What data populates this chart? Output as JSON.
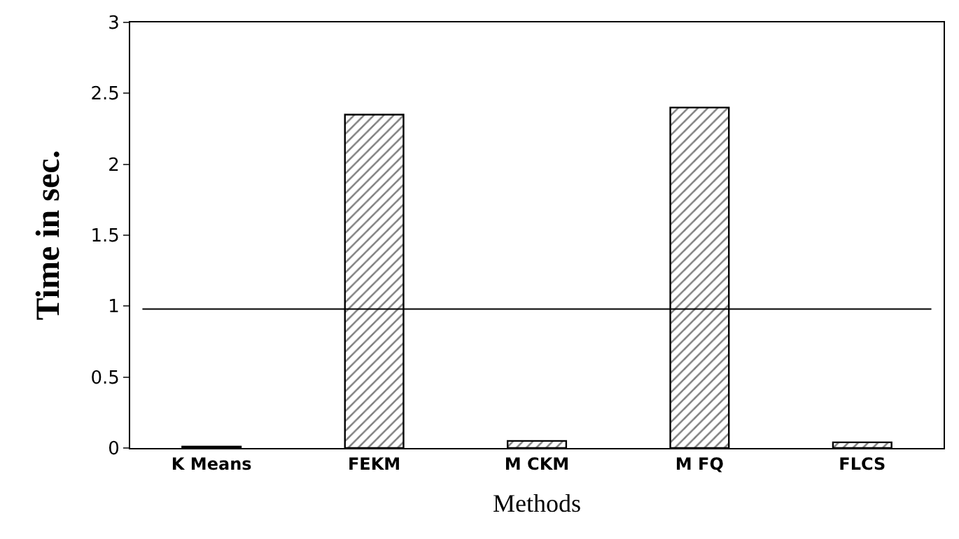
{
  "chart_data": {
    "type": "bar",
    "xlabel": "Methods",
    "ylabel": "Time in sec.",
    "categories": [
      "K Means",
      "FEKM",
      "M CKM",
      "M FQ",
      "FLCS"
    ],
    "values": [
      0.01,
      2.35,
      0.05,
      2.4,
      0.04
    ],
    "color": "#000000",
    "ylim": [
      0,
      3
    ],
    "yticks": [
      0,
      0.5,
      1,
      1.5,
      2,
      2.5,
      3
    ],
    "ref_lines": [
      {
        "axis": "y",
        "value": 0.98,
        "color": "#000000"
      }
    ]
  }
}
